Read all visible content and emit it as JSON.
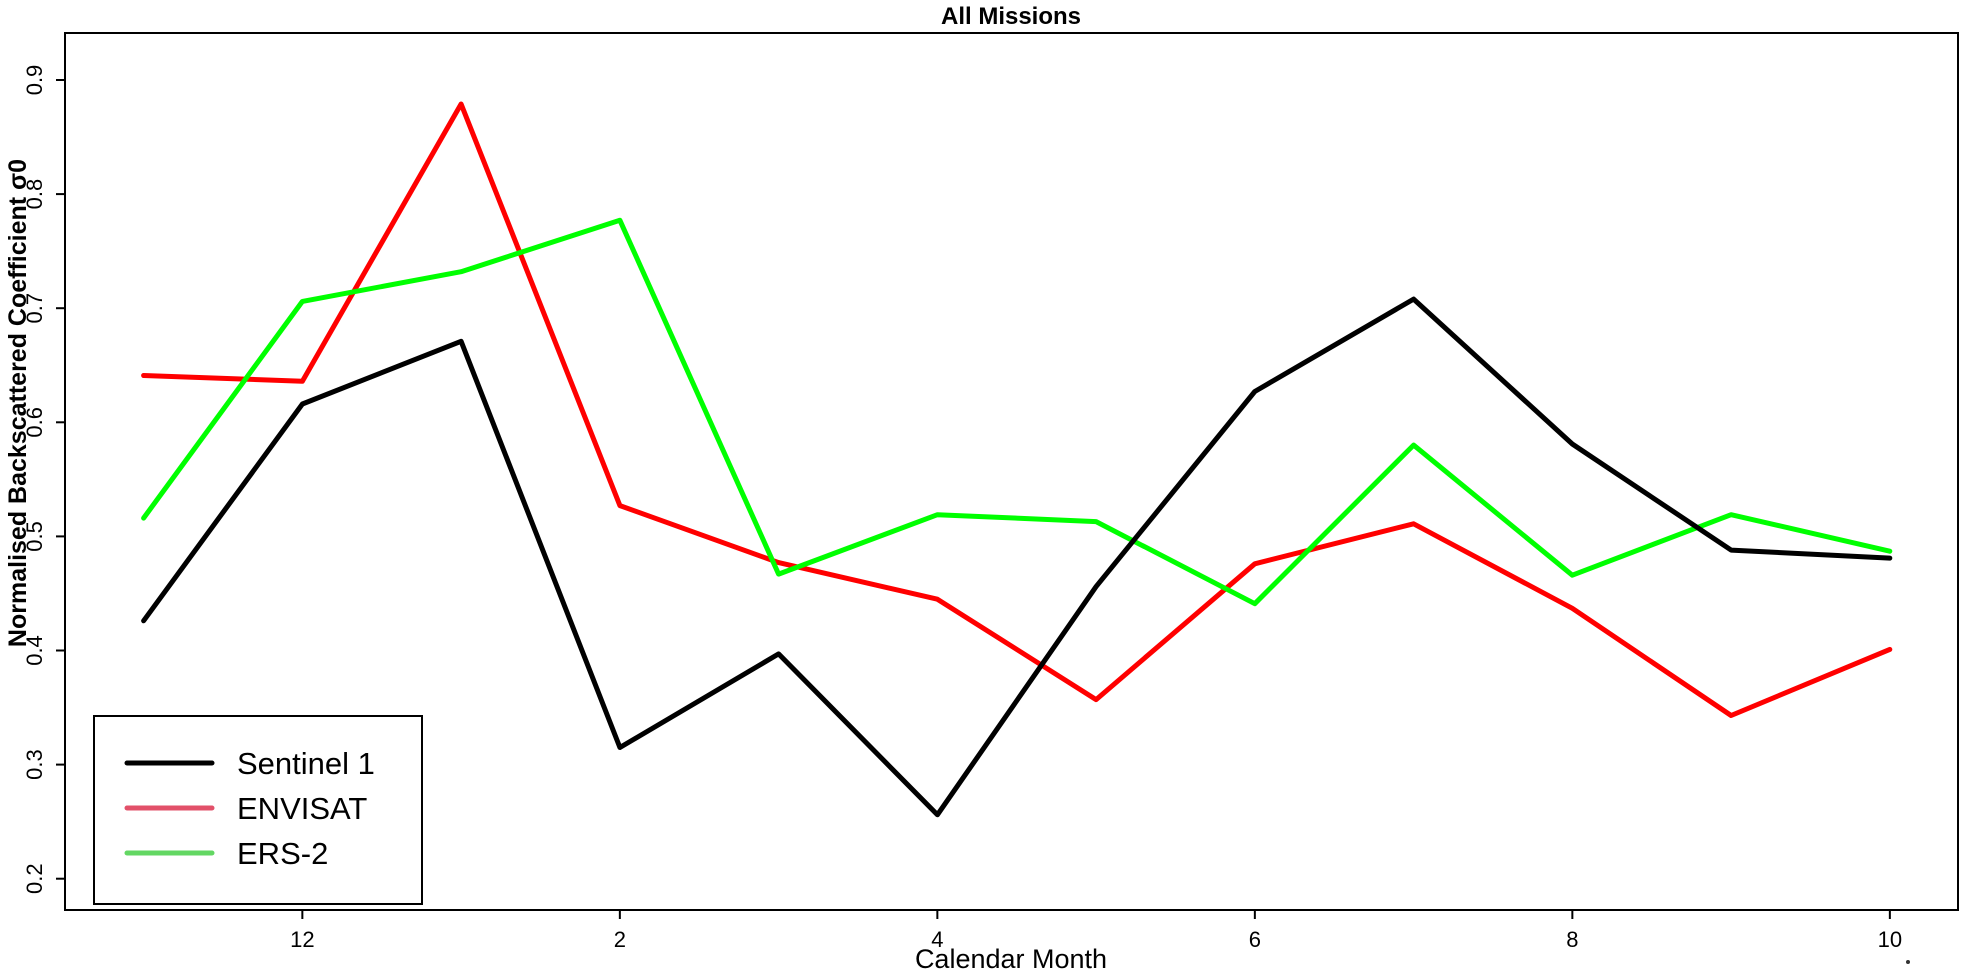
{
  "title": "All Missions",
  "x_axis_label": "Calendar Month",
  "y_axis_label": "Normalised Backscattered Coefficient σ0",
  "colors": {
    "background": "#ffffff",
    "axis": "#000000",
    "sentinel1": "#000000",
    "envisat": "#ff0000",
    "ers2": "#00ff00"
  },
  "chart_data": {
    "type": "line",
    "xlabel": "Calendar Month",
    "ylabel": "Normalised Backscattered Coefficient σ0",
    "x_months": [
      11,
      12,
      1,
      2,
      3,
      4,
      5,
      6,
      7,
      8,
      9,
      10
    ],
    "x_tick_labels": [
      "12",
      "2",
      "4",
      "6",
      "8",
      "10"
    ],
    "x_tick_month_indices": [
      1,
      3,
      5,
      7,
      9,
      11
    ],
    "y_tick_labels": [
      "0.2",
      "0.3",
      "0.4",
      "0.5",
      "0.6",
      "0.7",
      "0.8",
      "0.9"
    ],
    "ylim_shown": [
      0.2,
      0.9
    ],
    "grid": false,
    "legend_position": "bottom-left",
    "series": [
      {
        "name": "Sentinel 1",
        "color": "#000000",
        "legend_color": "#000000",
        "values": [
          0.426,
          0.616,
          0.671,
          0.315,
          0.397,
          0.256,
          0.456,
          0.627,
          0.708,
          0.581,
          0.488,
          0.481
        ]
      },
      {
        "name": "ENVISAT",
        "color": "#ff0000",
        "legend_color": "#e25069",
        "values": [
          0.641,
          0.636,
          0.879,
          0.527,
          0.477,
          0.445,
          0.357,
          0.476,
          0.511,
          0.437,
          0.343,
          0.401
        ]
      },
      {
        "name": "ERS-2",
        "color": "#00ff00",
        "legend_color": "#63d763",
        "values": [
          0.516,
          0.706,
          0.732,
          0.777,
          0.467,
          0.519,
          0.513,
          0.441,
          0.58,
          0.466,
          0.519,
          0.487
        ]
      }
    ]
  }
}
